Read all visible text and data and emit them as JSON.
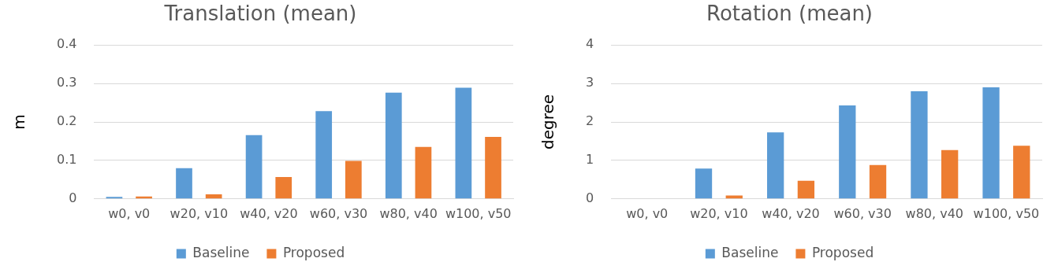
{
  "chart_data": [
    {
      "type": "bar",
      "title": "Translation (mean)",
      "ylabel": "m",
      "categories": [
        "w0, v0",
        "w20, v10",
        "w40, v20",
        "w60, v30",
        "w80, v40",
        "w100, v50"
      ],
      "series": [
        {
          "name": "Baseline",
          "color": "#5b9bd5",
          "values": [
            0.005,
            0.08,
            0.166,
            0.228,
            0.276,
            0.289
          ]
        },
        {
          "name": "Proposed",
          "color": "#ed7d31",
          "values": [
            0.006,
            0.012,
            0.057,
            0.099,
            0.135,
            0.161
          ]
        }
      ],
      "ylim": [
        0,
        0.4
      ],
      "yticks": [
        {
          "value": 0,
          "label": "0"
        },
        0.1,
        0.2,
        0.3,
        0.4
      ],
      "grid": "y",
      "legend": "bottom"
    },
    {
      "type": "bar",
      "title": "Rotation (mean)",
      "ylabel": "degree",
      "categories": [
        "w0, v0",
        "w20, v10",
        "w40, v20",
        "w60, v30",
        "w80, v40",
        "w100, v50"
      ],
      "series": [
        {
          "name": "Baseline",
          "color": "#5b9bd5",
          "values": [
            0,
            0.79,
            1.73,
            2.43,
            2.8,
            2.9
          ]
        },
        {
          "name": "Proposed",
          "color": "#ed7d31",
          "values": [
            0,
            0.09,
            0.47,
            0.88,
            1.27,
            1.38
          ]
        }
      ],
      "ylim": [
        0,
        4
      ],
      "yticks": [
        0,
        1,
        2,
        3,
        4
      ],
      "grid": "y",
      "legend": "bottom"
    }
  ]
}
